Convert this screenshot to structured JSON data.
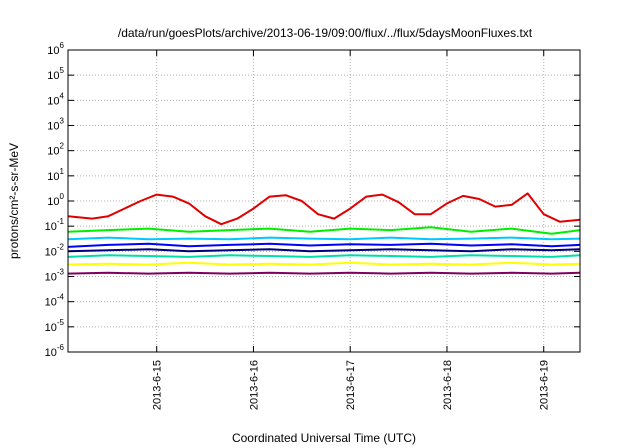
{
  "chart_data": {
    "type": "line",
    "title": "/data/run/goesPlots/archive/2013-06-19/09:00/flux/../flux/5daysMoonFluxes.txt",
    "xlabel": "Coordinated Universal Time (UTC)",
    "ylabel": "protons/cm²-s-sr-MeV",
    "yscale": "log",
    "ylim": [
      1e-06,
      1000000.0
    ],
    "xlim": [
      "2013-06-14T02:00",
      "2013-06-19T09:00"
    ],
    "grid": true,
    "legend": "none",
    "y_ticks": [
      {
        "base": "10",
        "exp": "-6"
      },
      {
        "base": "10",
        "exp": "-5"
      },
      {
        "base": "10",
        "exp": "-4"
      },
      {
        "base": "10",
        "exp": "-3"
      },
      {
        "base": "10",
        "exp": "-2"
      },
      {
        "base": "10",
        "exp": "-1"
      },
      {
        "base": "10",
        "exp": "0"
      },
      {
        "base": "10",
        "exp": "1"
      },
      {
        "base": "10",
        "exp": "2"
      },
      {
        "base": "10",
        "exp": "3"
      },
      {
        "base": "10",
        "exp": "4"
      },
      {
        "base": "10",
        "exp": "5"
      },
      {
        "base": "10",
        "exp": "6"
      }
    ],
    "x_ticks": [
      {
        "label": "2013-6-15",
        "t": "2013-06-15T00:00"
      },
      {
        "label": "2013-6-16",
        "t": "2013-06-16T00:00"
      },
      {
        "label": "2013-6-17",
        "t": "2013-06-17T00:00"
      },
      {
        "label": "2013-6-18",
        "t": "2013-06-18T00:00"
      },
      {
        "label": "2013-6-19",
        "t": "2013-06-19T00:00"
      }
    ],
    "series": [
      {
        "color": "#e00000",
        "x": [
          "2013-06-14T02:00",
          "2013-06-14T08:00",
          "2013-06-14T12:00",
          "2013-06-14T16:00",
          "2013-06-14T20:00",
          "2013-06-15T00:00",
          "2013-06-15T04:00",
          "2013-06-15T08:00",
          "2013-06-15T12:00",
          "2013-06-15T16:00",
          "2013-06-15T20:00",
          "2013-06-16T00:00",
          "2013-06-16T04:00",
          "2013-06-16T08:00",
          "2013-06-16T12:00",
          "2013-06-16T16:00",
          "2013-06-16T20:00",
          "2013-06-17T00:00",
          "2013-06-17T04:00",
          "2013-06-17T08:00",
          "2013-06-17T12:00",
          "2013-06-17T16:00",
          "2013-06-17T20:00",
          "2013-06-18T00:00",
          "2013-06-18T04:00",
          "2013-06-18T08:00",
          "2013-06-18T12:00",
          "2013-06-18T16:00",
          "2013-06-18T20:00",
          "2013-06-19T00:00",
          "2013-06-19T04:00",
          "2013-06-19T09:00"
        ],
        "y": [
          0.25,
          0.2,
          0.25,
          0.5,
          1.0,
          1.8,
          1.5,
          0.8,
          0.25,
          0.12,
          0.2,
          0.5,
          1.5,
          1.7,
          1.0,
          0.3,
          0.2,
          0.5,
          1.5,
          1.8,
          0.9,
          0.3,
          0.3,
          0.8,
          1.6,
          1.2,
          0.6,
          0.7,
          2.0,
          0.3,
          0.15,
          0.18
        ]
      },
      {
        "color": "#00ee00",
        "x": [
          "2013-06-14T02:00",
          "2013-06-14T12:00",
          "2013-06-14T22:00",
          "2013-06-15T08:00",
          "2013-06-15T18:00",
          "2013-06-16T04:00",
          "2013-06-16T14:00",
          "2013-06-17T00:00",
          "2013-06-17T10:00",
          "2013-06-17T20:00",
          "2013-06-18T06:00",
          "2013-06-18T16:00",
          "2013-06-19T02:00",
          "2013-06-19T09:00"
        ],
        "y": [
          0.06,
          0.07,
          0.08,
          0.06,
          0.07,
          0.08,
          0.06,
          0.08,
          0.07,
          0.09,
          0.06,
          0.08,
          0.05,
          0.07
        ]
      },
      {
        "color": "#00c8ff",
        "x": [
          "2013-06-14T02:00",
          "2013-06-14T12:00",
          "2013-06-14T22:00",
          "2013-06-15T08:00",
          "2013-06-15T18:00",
          "2013-06-16T04:00",
          "2013-06-16T14:00",
          "2013-06-17T00:00",
          "2013-06-17T10:00",
          "2013-06-17T20:00",
          "2013-06-18T06:00",
          "2013-06-18T16:00",
          "2013-06-19T02:00",
          "2013-06-19T09:00"
        ],
        "y": [
          0.03,
          0.035,
          0.03,
          0.032,
          0.03,
          0.035,
          0.032,
          0.03,
          0.035,
          0.03,
          0.032,
          0.035,
          0.03,
          0.032
        ]
      },
      {
        "color": "#0000ff",
        "x": [
          "2013-06-14T02:00",
          "2013-06-14T12:00",
          "2013-06-14T22:00",
          "2013-06-15T08:00",
          "2013-06-15T18:00",
          "2013-06-16T04:00",
          "2013-06-16T14:00",
          "2013-06-17T00:00",
          "2013-06-17T10:00",
          "2013-06-17T20:00",
          "2013-06-18T06:00",
          "2013-06-18T16:00",
          "2013-06-19T02:00",
          "2013-06-19T09:00"
        ],
        "y": [
          0.015,
          0.018,
          0.02,
          0.016,
          0.018,
          0.02,
          0.017,
          0.019,
          0.018,
          0.02,
          0.017,
          0.019,
          0.016,
          0.018
        ]
      },
      {
        "color": "#000080",
        "x": [
          "2013-06-14T02:00",
          "2013-06-14T12:00",
          "2013-06-14T22:00",
          "2013-06-15T08:00",
          "2013-06-15T18:00",
          "2013-06-16T04:00",
          "2013-06-16T14:00",
          "2013-06-17T00:00",
          "2013-06-17T10:00",
          "2013-06-17T20:00",
          "2013-06-18T06:00",
          "2013-06-18T16:00",
          "2013-06-19T02:00",
          "2013-06-19T09:00"
        ],
        "y": [
          0.01,
          0.011,
          0.012,
          0.01,
          0.011,
          0.012,
          0.01,
          0.011,
          0.012,
          0.011,
          0.01,
          0.012,
          0.011,
          0.012
        ]
      },
      {
        "color": "#00ddaa",
        "x": [
          "2013-06-14T02:00",
          "2013-06-14T12:00",
          "2013-06-14T22:00",
          "2013-06-15T08:00",
          "2013-06-15T18:00",
          "2013-06-16T04:00",
          "2013-06-16T14:00",
          "2013-06-17T00:00",
          "2013-06-17T10:00",
          "2013-06-17T20:00",
          "2013-06-18T06:00",
          "2013-06-18T16:00",
          "2013-06-19T02:00",
          "2013-06-19T09:00"
        ],
        "y": [
          0.006,
          0.007,
          0.0065,
          0.006,
          0.007,
          0.0065,
          0.006,
          0.007,
          0.0065,
          0.006,
          0.007,
          0.0065,
          0.006,
          0.007
        ]
      },
      {
        "color": "#ffff00",
        "x": [
          "2013-06-14T02:00",
          "2013-06-14T12:00",
          "2013-06-14T22:00",
          "2013-06-15T08:00",
          "2013-06-15T18:00",
          "2013-06-16T04:00",
          "2013-06-16T14:00",
          "2013-06-17T00:00",
          "2013-06-17T10:00",
          "2013-06-17T20:00",
          "2013-06-18T06:00",
          "2013-06-18T16:00",
          "2013-06-19T02:00",
          "2013-06-19T09:00"
        ],
        "y": [
          0.003,
          0.0032,
          0.003,
          0.0035,
          0.003,
          0.0032,
          0.003,
          0.0035,
          0.003,
          0.0032,
          0.003,
          0.0035,
          0.003,
          0.0032
        ]
      },
      {
        "color": "#800060",
        "x": [
          "2013-06-14T02:00",
          "2013-06-14T12:00",
          "2013-06-14T22:00",
          "2013-06-15T08:00",
          "2013-06-15T18:00",
          "2013-06-16T04:00",
          "2013-06-16T14:00",
          "2013-06-17T00:00",
          "2013-06-17T10:00",
          "2013-06-17T20:00",
          "2013-06-18T06:00",
          "2013-06-18T16:00",
          "2013-06-19T02:00",
          "2013-06-19T09:00"
        ],
        "y": [
          0.0013,
          0.0014,
          0.0013,
          0.0014,
          0.0013,
          0.0014,
          0.0013,
          0.0014,
          0.0013,
          0.0014,
          0.0013,
          0.0014,
          0.0013,
          0.0014
        ]
      }
    ]
  }
}
